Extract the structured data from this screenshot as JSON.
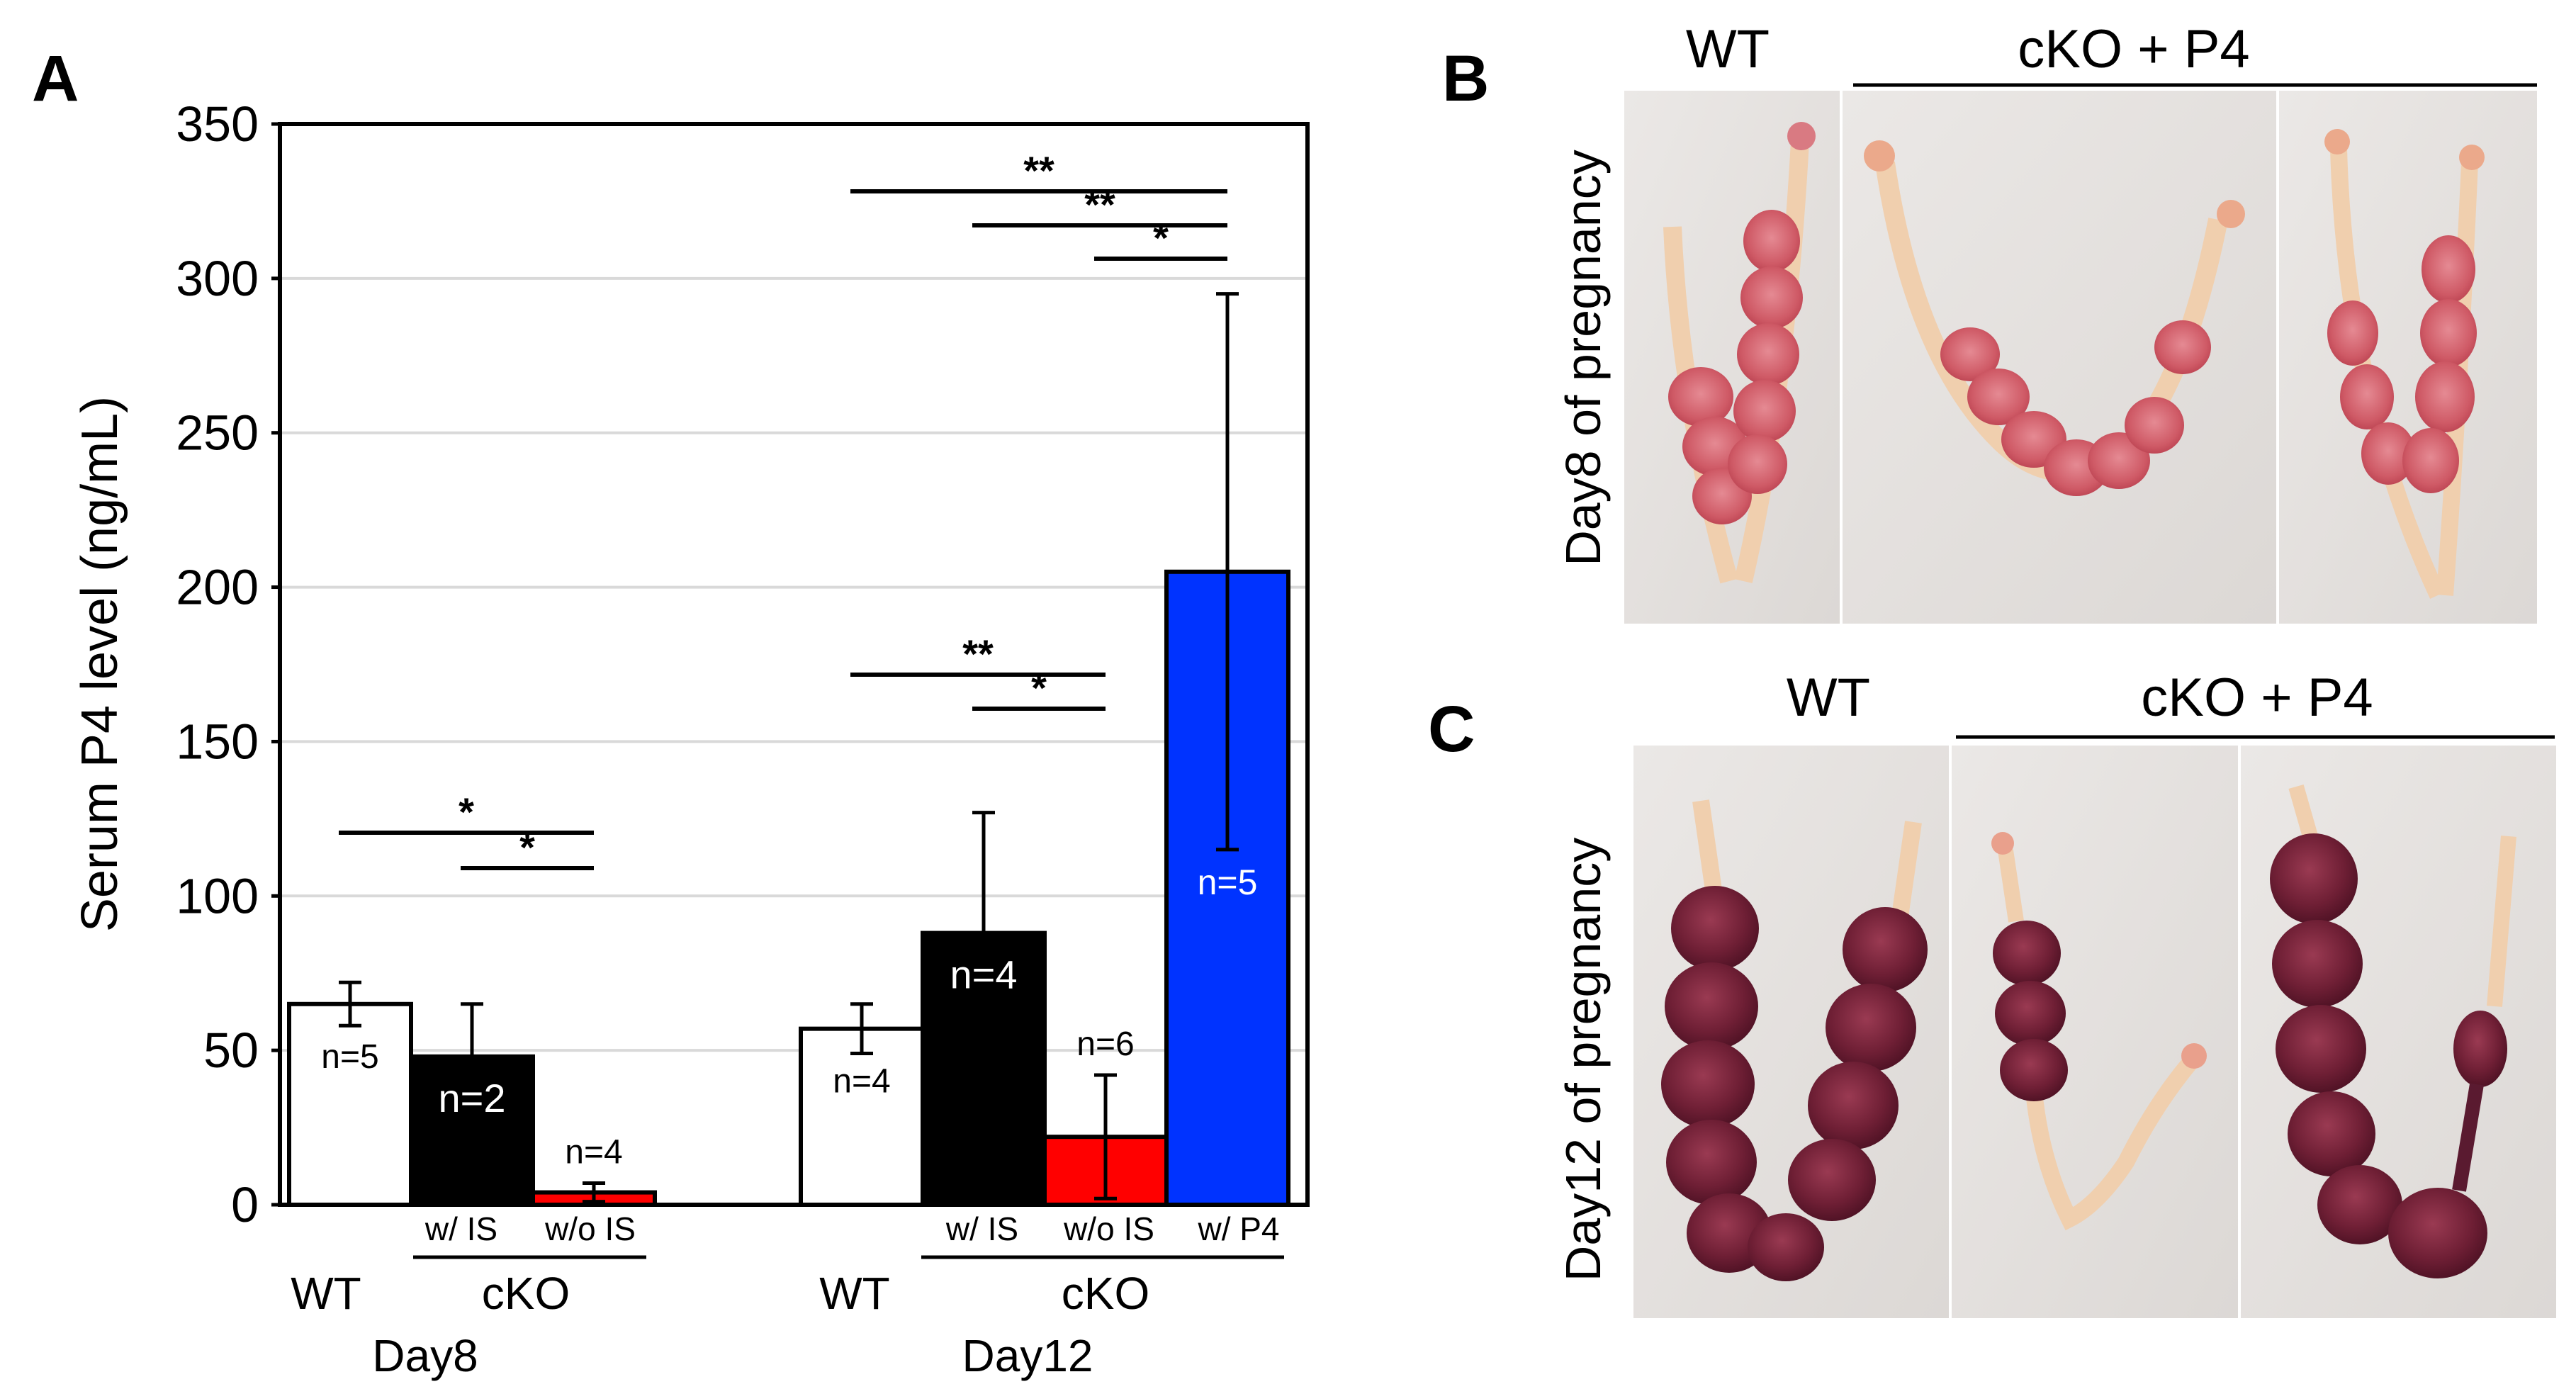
{
  "panels": {
    "A": "A",
    "B": "B",
    "C": "C"
  },
  "photo_panels": {
    "B": {
      "row_label": "Day8 of pregnancy",
      "wt_label": "WT",
      "cko_label": "cKO + P4"
    },
    "C": {
      "row_label": "Day12 of pregnancy",
      "wt_label": "WT",
      "cko_label": "cKO + P4"
    }
  },
  "groups": {
    "day8": {
      "label": "Day8",
      "wt": "WT",
      "cko": "cKO",
      "sub": [
        "w/ IS",
        "w/o IS"
      ]
    },
    "day12": {
      "label": "Day12",
      "wt": "WT",
      "cko": "cKO",
      "sub": [
        "w/ IS",
        "w/o IS",
        "w/ P4"
      ]
    }
  },
  "colors": {
    "wt": "#ffffff",
    "cko_is": "#000000",
    "cko_no_is": "#ff0000",
    "cko_p4": "#0033ff",
    "grid": "#d9d9d9"
  },
  "chart_data": {
    "type": "bar",
    "title": "",
    "xlabel": "",
    "ylabel": "Serum P4 level (ng/mL)",
    "ylim": [
      0,
      350
    ],
    "yticks": [
      0,
      50,
      100,
      150,
      200,
      250,
      300,
      350
    ],
    "grid": true,
    "categories": [
      "Day8 WT",
      "Day8 cKO w/ IS",
      "Day8 cKO w/o IS",
      "Day12 WT",
      "Day12 cKO w/ IS",
      "Day12 cKO w/o IS",
      "Day12 cKO w/ P4"
    ],
    "values": [
      65,
      48,
      4,
      57,
      88,
      22,
      205
    ],
    "errors": [
      7,
      17,
      3,
      8,
      39,
      20,
      90
    ],
    "n_labels": [
      "n=5",
      "n=2",
      "n=4",
      "n=4",
      "n=4",
      "n=6",
      "n=5"
    ],
    "significance": [
      {
        "from": "Day8 WT",
        "to": "Day8 cKO w/o IS",
        "label": "*"
      },
      {
        "from": "Day8 cKO w/ IS",
        "to": "Day8 cKO w/o IS",
        "label": "*"
      },
      {
        "from": "Day12 WT",
        "to": "Day12 cKO w/o IS",
        "label": "**"
      },
      {
        "from": "Day12 cKO w/ IS",
        "to": "Day12 cKO w/o IS",
        "label": "*"
      },
      {
        "from": "Day12 WT",
        "to": "Day12 cKO w/ P4",
        "label": "**"
      },
      {
        "from": "Day12 cKO w/ IS",
        "to": "Day12 cKO w/ P4",
        "label": "**"
      },
      {
        "from": "Day12 cKO w/o IS",
        "to": "Day12 cKO w/ P4",
        "label": "*"
      }
    ]
  }
}
